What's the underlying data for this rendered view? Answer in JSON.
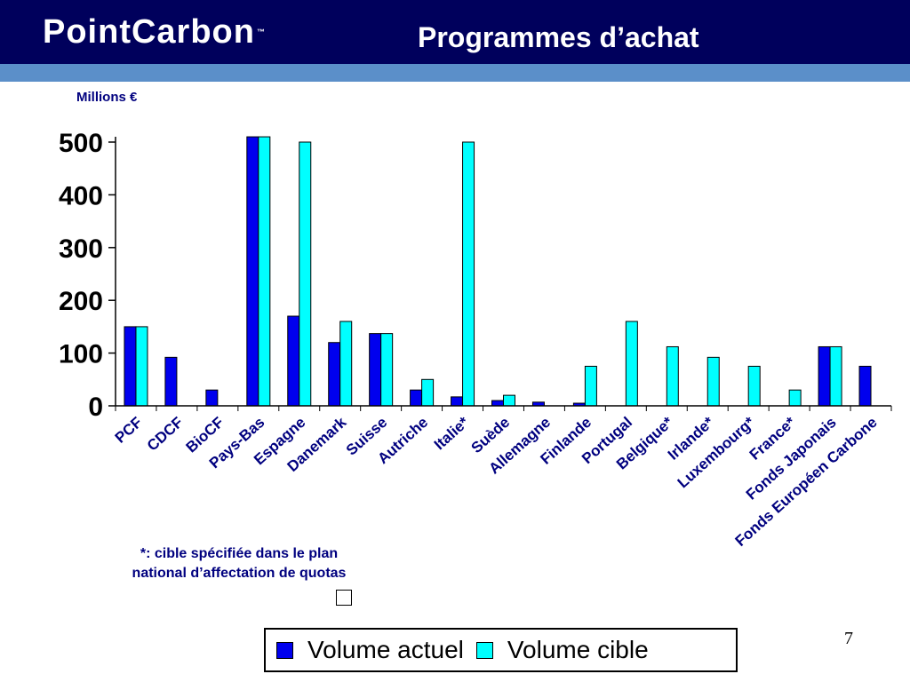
{
  "header": {
    "logo_text": "PointCarbon",
    "logo_tm": "™",
    "title": "Programmes d’achat"
  },
  "colors": {
    "header_bg": "#00005c",
    "stripe": "#5b8fc9",
    "actual": "#0000ee",
    "target": "#00ffff"
  },
  "chart_data": {
    "type": "bar",
    "ylabel": "Millions €",
    "ylim": [
      0,
      500
    ],
    "yticks": [
      0,
      100,
      200,
      300,
      400,
      500
    ],
    "grid": false,
    "legend_position": "bottom",
    "categories": [
      "PCF",
      "CDCF",
      "BioCF",
      "Pays-Bas",
      "Espagne",
      "Danemark",
      "Suisse",
      "Autriche",
      "Italie*",
      "Suède",
      "Allemagne",
      "Finlande",
      "Portugal",
      "Belgique*",
      "Irlande*",
      "Luxembourg*",
      "France*",
      "Fonds Japonais",
      "Fonds Européen Carbone"
    ],
    "series": [
      {
        "name": "Volume actuel",
        "values": [
          150,
          92,
          30,
          510,
          170,
          120,
          137,
          30,
          17,
          10,
          7,
          5,
          0,
          0,
          0,
          0,
          0,
          112,
          75
        ]
      },
      {
        "name": "Volume cible",
        "values": [
          150,
          0,
          0,
          510,
          500,
          160,
          137,
          50,
          500,
          20,
          0,
          75,
          160,
          112,
          92,
          75,
          30,
          112,
          0
        ]
      }
    ]
  },
  "footnote": {
    "line1": "*: cible spécifiée dans le plan",
    "line2": "national d’affectation de quotas"
  },
  "legend": {
    "actual_label": "Volume actuel",
    "target_label": "Volume cible"
  },
  "page_number": "7"
}
